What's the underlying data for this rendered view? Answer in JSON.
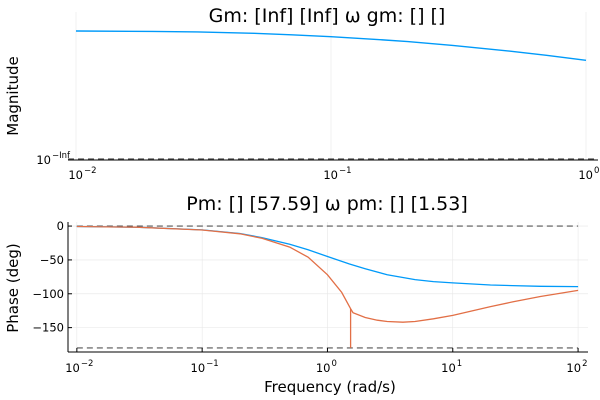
{
  "chart_data": [
    {
      "type": "line",
      "title": "Gm: [Inf] [Inf]  ω gm: [] []",
      "xlabel": "",
      "ylabel": "Magnitude",
      "xscale": "log",
      "yscale": "log",
      "xlim": [
        0.01,
        1.0
      ],
      "y_tick_label": {
        "base": "10",
        "exp": "−Inf"
      },
      "x_ticks": [
        {
          "base": "10",
          "exp": "−2",
          "value": 0.01
        },
        {
          "base": "10",
          "exp": "−1",
          "value": 0.1
        },
        {
          "base": "10",
          "exp": "0",
          "value": 1.0
        }
      ],
      "grid": true,
      "legend": false,
      "series": [
        {
          "color": "#009af9",
          "x": [
            0.01,
            0.02,
            0.03,
            0.05,
            0.07,
            0.1,
            0.15,
            0.2,
            0.3,
            0.5,
            0.7,
            1.0
          ],
          "relative_level": [
            0.0,
            0.01,
            0.025,
            0.06,
            0.1,
            0.15,
            0.22,
            0.28,
            0.38,
            0.53,
            0.64,
            0.77
          ]
        }
      ],
      "reference_lines": [
        {
          "color": "#555555",
          "style": "dashed",
          "level": "zero"
        }
      ]
    },
    {
      "type": "line",
      "title": "Pm: [] [57.59]  ω pm: [] [1.53]",
      "xlabel": "Frequency (rad/s)",
      "ylabel": "Phase (deg)",
      "xscale": "log",
      "xlim": [
        0.0085,
        120
      ],
      "ylim": [
        -186,
        6
      ],
      "x_ticks": [
        {
          "base": "10",
          "exp": "−2",
          "value": 0.01
        },
        {
          "base": "10",
          "exp": "−1",
          "value": 0.1
        },
        {
          "base": "10",
          "exp": "0",
          "value": 1
        },
        {
          "base": "10",
          "exp": "1",
          "value": 10
        },
        {
          "base": "10",
          "exp": "2",
          "value": 100
        }
      ],
      "y_ticks": [
        0,
        -50,
        -100,
        -150
      ],
      "y_tick_labels": [
        "0",
        "−50",
        "−100",
        "−150"
      ],
      "grid": true,
      "legend": false,
      "series": [
        {
          "color": "#009af9",
          "x": [
            0.01,
            0.03,
            0.1,
            0.2,
            0.3,
            0.5,
            0.7,
            1,
            1.5,
            2,
            3,
            5,
            7,
            10,
            20,
            30,
            50,
            100
          ],
          "y": [
            -0.6,
            -1.7,
            -5.7,
            -11,
            -17,
            -27,
            -35,
            -45,
            -56,
            -63,
            -72,
            -79,
            -82,
            -84,
            -87,
            -88,
            -89,
            -89.4
          ]
        },
        {
          "color": "#e26f46",
          "x": [
            0.01,
            0.03,
            0.1,
            0.2,
            0.3,
            0.5,
            0.7,
            1,
            1.3,
            1.53,
            1.6,
            2,
            2.5,
            3,
            4,
            5,
            7,
            10,
            20,
            30,
            50,
            100
          ],
          "y": [
            -0.6,
            -1.7,
            -5.8,
            -11.5,
            -18,
            -31,
            -46,
            -72,
            -98,
            -122,
            -128,
            -135,
            -139,
            -141,
            -142,
            -141,
            -137,
            -132,
            -119,
            -112,
            -104,
            -95
          ]
        },
        {
          "color": "#e26f46",
          "x": [
            1.53,
            1.53
          ],
          "y": [
            -122,
            -180
          ]
        }
      ],
      "reference_lines": [
        {
          "color": "#555555",
          "style": "dashed",
          "y": 0
        },
        {
          "color": "#555555",
          "style": "dashed",
          "y": -180
        }
      ]
    }
  ]
}
